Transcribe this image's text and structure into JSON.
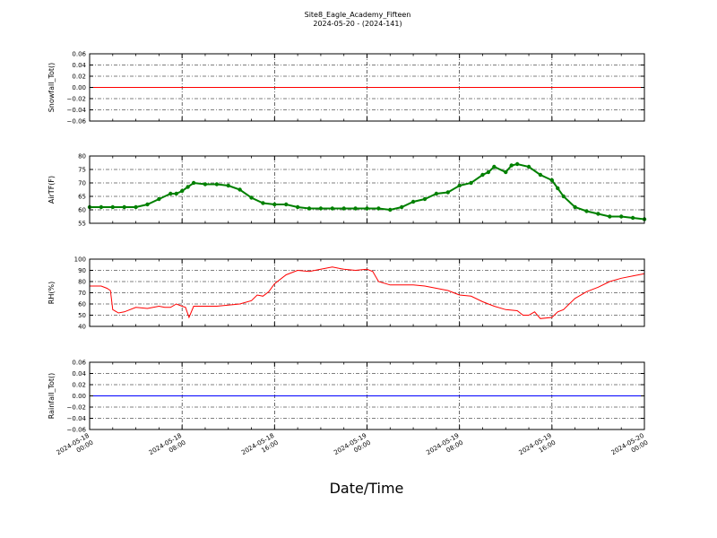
{
  "figure": {
    "title": "Site8_Eagle_Academy_Fifteen",
    "subtitle": "2024-05-20 - (2024-141)",
    "xlabel": "Date/Time",
    "x_tick_labels": [
      [
        "2024-05-18",
        "00:00"
      ],
      [
        "2024-05-18",
        "08:00"
      ],
      [
        "2024-05-18",
        "16:00"
      ],
      [
        "2024-05-19",
        "00:00"
      ],
      [
        "2024-05-19",
        "08:00"
      ],
      [
        "2024-05-19",
        "16:00"
      ],
      [
        "2024-05-20",
        "00:00"
      ]
    ]
  },
  "chart_data": [
    {
      "type": "line",
      "ylabel": "Snowfall_Tot()",
      "ylim": [
        -0.06,
        0.06
      ],
      "yticks": [
        "0.06",
        "0.04",
        "0.02",
        "0.00",
        "−0.02",
        "−0.04",
        "−0.06"
      ],
      "grid": true,
      "color": "#ff0000",
      "x": [
        0,
        48
      ],
      "y": [
        0.0,
        0.0
      ]
    },
    {
      "type": "line",
      "ylabel": "AirTF(F)",
      "ylim": [
        55,
        80
      ],
      "yticks": [
        "80",
        "75",
        "70",
        "65",
        "60",
        "55"
      ],
      "grid": true,
      "color": "#008000",
      "markers": true,
      "x": [
        0,
        1,
        2,
        3,
        4,
        5,
        6,
        7,
        7.5,
        8,
        8.5,
        9,
        10,
        11,
        12,
        13,
        14,
        15,
        16,
        17,
        18,
        19,
        20,
        21,
        22,
        23,
        24,
        25,
        26,
        27,
        28,
        29,
        30,
        31,
        32,
        33,
        34,
        34.5,
        35,
        36,
        36.5,
        37,
        38,
        39,
        40,
        40.5,
        41,
        42,
        43,
        44,
        45,
        46,
        47,
        48
      ],
      "y": [
        61,
        61,
        61,
        61,
        61,
        62,
        64,
        66,
        66,
        67,
        68.5,
        70,
        69.5,
        69.5,
        69,
        67.5,
        64.5,
        62.5,
        62,
        62,
        61,
        60.5,
        60.5,
        60.5,
        60.5,
        60.5,
        60.5,
        60.5,
        60,
        61,
        63,
        64,
        66,
        66.5,
        69,
        70,
        73,
        74,
        76,
        74,
        76.5,
        77,
        76,
        73,
        71,
        68,
        65,
        61,
        59.5,
        58.5,
        57.5,
        57.5,
        57,
        56.5
      ]
    },
    {
      "type": "line",
      "ylabel": "RH(%)",
      "ylim": [
        40,
        100
      ],
      "yticks": [
        "100",
        "90",
        "80",
        "70",
        "60",
        "50",
        "40"
      ],
      "grid": true,
      "color": "#ff0000",
      "x": [
        0,
        1,
        1.5,
        1.8,
        2,
        2.5,
        3,
        4,
        5,
        6,
        6.5,
        7,
        7.5,
        8,
        8.3,
        8.6,
        9,
        10,
        11,
        12,
        13,
        14,
        14.5,
        15,
        15.5,
        16,
        17,
        18,
        19,
        20,
        21,
        22,
        23,
        24,
        24.5,
        25,
        26,
        27,
        28,
        29,
        30,
        31,
        31.5,
        32,
        33,
        34,
        35,
        36,
        37,
        37.5,
        38,
        38.5,
        39,
        40,
        40.5,
        41,
        42,
        43,
        44,
        45,
        46,
        47,
        48
      ],
      "y": [
        76,
        76,
        74,
        72,
        55,
        52,
        53,
        57,
        56,
        58,
        57,
        57,
        60,
        58,
        57,
        48,
        58,
        58,
        58,
        59,
        60,
        63,
        68,
        67,
        71,
        78,
        86,
        90,
        89,
        91,
        93,
        91,
        90,
        91,
        89,
        80,
        77,
        77,
        77,
        76,
        74,
        72,
        70,
        68,
        67,
        62,
        58,
        55,
        54,
        50,
        50,
        53,
        47,
        48,
        53,
        55,
        65,
        71,
        75,
        80,
        83,
        85,
        87
      ]
    },
    {
      "type": "line",
      "ylabel": "Rainfall_Tot()",
      "ylim": [
        -0.06,
        0.06
      ],
      "yticks": [
        "0.06",
        "0.04",
        "0.02",
        "0.00",
        "−0.02",
        "−0.04",
        "−0.06"
      ],
      "grid": true,
      "color": "#0000ff",
      "x": [
        0,
        48
      ],
      "y": [
        0.0,
        0.0
      ]
    }
  ]
}
